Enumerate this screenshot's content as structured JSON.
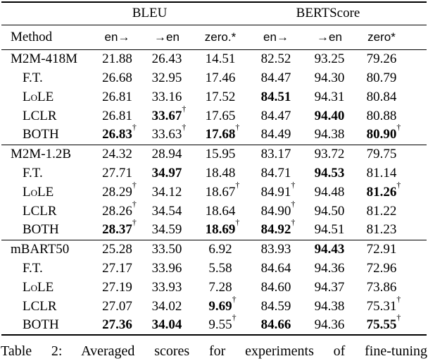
{
  "symbols": {
    "dagger": "†"
  },
  "table": {
    "group_headers": [
      "BLEU",
      "BERTScore"
    ],
    "columns": [
      "Method",
      "en→",
      "→en",
      "zero.*",
      "en→",
      "→en",
      "zero*"
    ],
    "groups": [
      {
        "rows": [
          {
            "method": "M2M-418M",
            "indent": false,
            "cells": [
              {
                "v": "21.88"
              },
              {
                "v": "26.43"
              },
              {
                "v": "14.51"
              },
              {
                "v": "82.52"
              },
              {
                "v": "93.25"
              },
              {
                "v": "79.26"
              }
            ]
          },
          {
            "method": "F.T.",
            "indent": true,
            "cells": [
              {
                "v": "26.68"
              },
              {
                "v": "32.95"
              },
              {
                "v": "17.46"
              },
              {
                "v": "84.47"
              },
              {
                "v": "94.30"
              },
              {
                "v": "80.79"
              }
            ]
          },
          {
            "method": "LoLE",
            "indent": true,
            "cells": [
              {
                "v": "26.81"
              },
              {
                "v": "33.16"
              },
              {
                "v": "17.52"
              },
              {
                "v": "84.51",
                "b": true
              },
              {
                "v": "94.31"
              },
              {
                "v": "80.84"
              }
            ]
          },
          {
            "method": "LCLR",
            "indent": true,
            "cells": [
              {
                "v": "26.81"
              },
              {
                "v": "33.67",
                "b": true,
                "d": true
              },
              {
                "v": "17.65"
              },
              {
                "v": "84.47"
              },
              {
                "v": "94.40",
                "b": true
              },
              {
                "v": "80.88"
              }
            ]
          },
          {
            "method": "BOTH",
            "indent": true,
            "cells": [
              {
                "v": "26.83",
                "b": true,
                "d": true
              },
              {
                "v": "33.63",
                "d": true
              },
              {
                "v": "17.68",
                "b": true,
                "d": true
              },
              {
                "v": "84.49"
              },
              {
                "v": "94.38"
              },
              {
                "v": "80.90",
                "b": true,
                "d": true
              }
            ]
          }
        ]
      },
      {
        "rows": [
          {
            "method": "M2M-1.2B",
            "indent": false,
            "cells": [
              {
                "v": "24.32"
              },
              {
                "v": "28.94"
              },
              {
                "v": "15.95"
              },
              {
                "v": "83.17"
              },
              {
                "v": "93.72"
              },
              {
                "v": "79.75"
              }
            ]
          },
          {
            "method": "F.T.",
            "indent": true,
            "cells": [
              {
                "v": "27.71"
              },
              {
                "v": "34.97",
                "b": true
              },
              {
                "v": "18.48"
              },
              {
                "v": "84.71"
              },
              {
                "v": "94.53",
                "b": true
              },
              {
                "v": "81.14"
              }
            ]
          },
          {
            "method": "LoLE",
            "indent": true,
            "cells": [
              {
                "v": "28.29",
                "d": true
              },
              {
                "v": "34.12"
              },
              {
                "v": "18.67",
                "d": true
              },
              {
                "v": "84.91",
                "d": true
              },
              {
                "v": "94.48"
              },
              {
                "v": "81.26",
                "b": true,
                "d": true
              }
            ]
          },
          {
            "method": "LCLR",
            "indent": true,
            "cells": [
              {
                "v": "28.26",
                "d": true
              },
              {
                "v": "34.54"
              },
              {
                "v": "18.64"
              },
              {
                "v": "84.90",
                "d": true
              },
              {
                "v": "94.50"
              },
              {
                "v": "81.22"
              }
            ]
          },
          {
            "method": "BOTH",
            "indent": true,
            "cells": [
              {
                "v": "28.37",
                "b": true,
                "d": true
              },
              {
                "v": "34.59"
              },
              {
                "v": "18.69",
                "b": true,
                "d": true
              },
              {
                "v": "84.92",
                "b": true,
                "d": true
              },
              {
                "v": "94.51"
              },
              {
                "v": "81.23"
              }
            ]
          }
        ]
      },
      {
        "rows": [
          {
            "method": "mBART50",
            "indent": false,
            "cells": [
              {
                "v": "25.28"
              },
              {
                "v": "33.50"
              },
              {
                "v": "6.92"
              },
              {
                "v": "83.93"
              },
              {
                "v": "94.43",
                "b": true
              },
              {
                "v": "72.91"
              }
            ]
          },
          {
            "method": "F.T.",
            "indent": true,
            "cells": [
              {
                "v": "27.17"
              },
              {
                "v": "33.96"
              },
              {
                "v": "5.58"
              },
              {
                "v": "84.64"
              },
              {
                "v": "94.36"
              },
              {
                "v": "72.96"
              }
            ]
          },
          {
            "method": "LoLE",
            "indent": true,
            "cells": [
              {
                "v": "27.19"
              },
              {
                "v": "33.93"
              },
              {
                "v": "7.28"
              },
              {
                "v": "84.60"
              },
              {
                "v": "94.37"
              },
              {
                "v": "73.86"
              }
            ]
          },
          {
            "method": "LCLR",
            "indent": true,
            "cells": [
              {
                "v": "27.07"
              },
              {
                "v": "34.02"
              },
              {
                "v": "9.69",
                "b": true,
                "d": true
              },
              {
                "v": "84.59"
              },
              {
                "v": "94.38"
              },
              {
                "v": "75.31",
                "d": true
              }
            ]
          },
          {
            "method": "BOTH",
            "indent": true,
            "cells": [
              {
                "v": "27.36",
                "b": true
              },
              {
                "v": "34.04",
                "b": true
              },
              {
                "v": "9.55",
                "d": true
              },
              {
                "v": "84.66",
                "b": true
              },
              {
                "v": "94.36"
              },
              {
                "v": "75.55",
                "b": true,
                "d": true
              }
            ]
          }
        ]
      }
    ]
  },
  "caption": {
    "text": "Table 2: Averaged scores for experiments of fine-tuning"
  }
}
